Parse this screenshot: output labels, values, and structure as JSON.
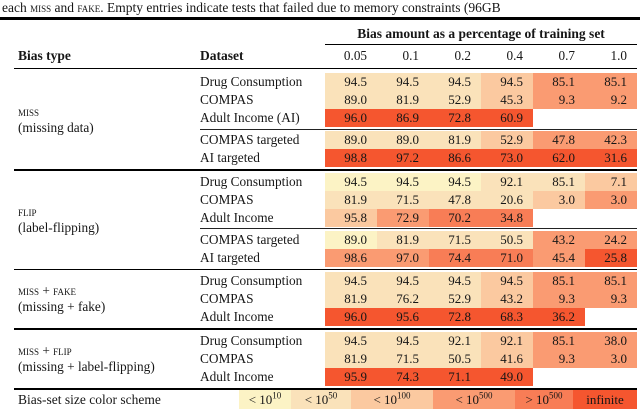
{
  "caption": {
    "parts": [
      {
        "text": "each ",
        "sc": false
      },
      {
        "text": "miss",
        "sc": true
      },
      {
        "text": " and ",
        "sc": false
      },
      {
        "text": "fake",
        "sc": true
      },
      {
        "text": ". Empty entries indicate tests that failed due to memory constraints (96GB",
        "sc": false
      }
    ]
  },
  "palette": {
    "c1": "#FCF3C5",
    "c2": "#FAE2BA",
    "c3": "#FBC9A0",
    "c4": "#FA9B72",
    "c5": "#F87D56",
    "c6": "#F5562F"
  },
  "table": {
    "header": {
      "span_title": "Bias amount as a percentage of training set",
      "col1": "Bias type",
      "col2": "Dataset",
      "amounts": [
        "0.05",
        "0.1",
        "0.2",
        "0.4",
        "0.7",
        "1.0"
      ]
    },
    "sections": [
      {
        "bias_type": "miss",
        "bias_note": "(missing data)",
        "groups": [
          {
            "rows": [
              {
                "dataset": "Drug Consumption",
                "cells": [
                  [
                    "94.5",
                    "c2"
                  ],
                  [
                    "94.5",
                    "c2"
                  ],
                  [
                    "94.5",
                    "c2"
                  ],
                  [
                    "94.5",
                    "c3"
                  ],
                  [
                    "85.1",
                    "c4"
                  ],
                  [
                    "85.1",
                    "c4"
                  ]
                ]
              },
              {
                "dataset": "COMPAS",
                "cells": [
                  [
                    "89.0",
                    "c2"
                  ],
                  [
                    "81.9",
                    "c2"
                  ],
                  [
                    "52.9",
                    "c2"
                  ],
                  [
                    "45.3",
                    "c3"
                  ],
                  [
                    "9.3",
                    "c4"
                  ],
                  [
                    "9.2",
                    "c4"
                  ]
                ]
              },
              {
                "dataset": "Adult Income (AI)",
                "cells": [
                  [
                    "96.0",
                    "c6"
                  ],
                  [
                    "86.9",
                    "c6"
                  ],
                  [
                    "72.8",
                    "c6"
                  ],
                  [
                    "60.9",
                    "c6"
                  ],
                  null,
                  null
                ]
              }
            ]
          },
          {
            "rows": [
              {
                "dataset": "COMPAS targeted",
                "cells": [
                  [
                    "89.0",
                    "c2"
                  ],
                  [
                    "89.0",
                    "c2"
                  ],
                  [
                    "81.9",
                    "c2"
                  ],
                  [
                    "52.9",
                    "c3"
                  ],
                  [
                    "47.8",
                    "c4"
                  ],
                  [
                    "42.3",
                    "c4"
                  ]
                ]
              },
              {
                "dataset": "AI targeted",
                "cells": [
                  [
                    "98.8",
                    "c6"
                  ],
                  [
                    "97.2",
                    "c6"
                  ],
                  [
                    "86.6",
                    "c6"
                  ],
                  [
                    "73.0",
                    "c6"
                  ],
                  [
                    "62.0",
                    "c6"
                  ],
                  [
                    "31.6",
                    "c6"
                  ]
                ]
              }
            ]
          }
        ]
      },
      {
        "bias_type": "flip",
        "bias_note": "(label-flipping)",
        "groups": [
          {
            "rows": [
              {
                "dataset": "Drug Consumption",
                "cells": [
                  [
                    "94.5",
                    "c1"
                  ],
                  [
                    "94.5",
                    "c1"
                  ],
                  [
                    "94.5",
                    "c1"
                  ],
                  [
                    "92.1",
                    "c2"
                  ],
                  [
                    "85.1",
                    "c2"
                  ],
                  [
                    "7.1",
                    "c3"
                  ]
                ]
              },
              {
                "dataset": "COMPAS",
                "cells": [
                  [
                    "81.9",
                    "c2"
                  ],
                  [
                    "71.5",
                    "c2"
                  ],
                  [
                    "47.8",
                    "c2"
                  ],
                  [
                    "20.6",
                    "c2"
                  ],
                  [
                    "3.0",
                    "c3"
                  ],
                  [
                    "3.0",
                    "c4"
                  ]
                ]
              },
              {
                "dataset": "Adult Income",
                "cells": [
                  [
                    "95.8",
                    "c3"
                  ],
                  [
                    "72.9",
                    "c4"
                  ],
                  [
                    "70.2",
                    "c5"
                  ],
                  [
                    "34.8",
                    "c5"
                  ],
                  null,
                  null
                ]
              }
            ]
          },
          {
            "rows": [
              {
                "dataset": "COMPAS targeted",
                "cells": [
                  [
                    "89.0",
                    "c1"
                  ],
                  [
                    "81.9",
                    "c2"
                  ],
                  [
                    "71.5",
                    "c2"
                  ],
                  [
                    "50.5",
                    "c2"
                  ],
                  [
                    "43.2",
                    "c4"
                  ],
                  [
                    "24.2",
                    "c4"
                  ]
                ]
              },
              {
                "dataset": "AI targeted",
                "cells": [
                  [
                    "98.6",
                    "c4"
                  ],
                  [
                    "97.0",
                    "c4"
                  ],
                  [
                    "74.4",
                    "c5"
                  ],
                  [
                    "71.0",
                    "c5"
                  ],
                  [
                    "45.4",
                    "c4"
                  ],
                  [
                    "25.8",
                    "c6"
                  ]
                ]
              }
            ]
          }
        ]
      },
      {
        "bias_type": "miss + fake",
        "bias_note": "(missing + fake)",
        "groups": [
          {
            "rows": [
              {
                "dataset": "Drug Consumption",
                "cells": [
                  [
                    "94.5",
                    "c2"
                  ],
                  [
                    "94.5",
                    "c2"
                  ],
                  [
                    "94.5",
                    "c2"
                  ],
                  [
                    "94.5",
                    "c3"
                  ],
                  [
                    "85.1",
                    "c4"
                  ],
                  [
                    "85.1",
                    "c4"
                  ]
                ]
              },
              {
                "dataset": "COMPAS",
                "cells": [
                  [
                    "81.9",
                    "c2"
                  ],
                  [
                    "76.2",
                    "c2"
                  ],
                  [
                    "52.9",
                    "c2"
                  ],
                  [
                    "43.2",
                    "c3"
                  ],
                  [
                    "9.3",
                    "c4"
                  ],
                  [
                    "9.3",
                    "c4"
                  ]
                ]
              },
              {
                "dataset": "Adult Income",
                "cells": [
                  [
                    "96.0",
                    "c6"
                  ],
                  [
                    "95.6",
                    "c6"
                  ],
                  [
                    "72.8",
                    "c6"
                  ],
                  [
                    "68.3",
                    "c6"
                  ],
                  [
                    "36.2",
                    "c6"
                  ],
                  null
                ]
              }
            ]
          }
        ]
      },
      {
        "bias_type": "miss + flip",
        "bias_note": "(missing + label-flipping)",
        "groups": [
          {
            "rows": [
              {
                "dataset": "Drug Consumption",
                "cells": [
                  [
                    "94.5",
                    "c2"
                  ],
                  [
                    "94.5",
                    "c2"
                  ],
                  [
                    "92.1",
                    "c2"
                  ],
                  [
                    "92.1",
                    "c3"
                  ],
                  [
                    "85.1",
                    "c4"
                  ],
                  [
                    "38.0",
                    "c4"
                  ]
                ]
              },
              {
                "dataset": "COMPAS",
                "cells": [
                  [
                    "81.9",
                    "c2"
                  ],
                  [
                    "71.5",
                    "c2"
                  ],
                  [
                    "50.5",
                    "c2"
                  ],
                  [
                    "41.6",
                    "c3"
                  ],
                  [
                    "9.3",
                    "c4"
                  ],
                  [
                    "3.0",
                    "c4"
                  ]
                ]
              },
              {
                "dataset": "Adult Income",
                "cells": [
                  [
                    "95.9",
                    "c6"
                  ],
                  [
                    "74.3",
                    "c6"
                  ],
                  [
                    "71.1",
                    "c6"
                  ],
                  [
                    "49.0",
                    "c6"
                  ],
                  null,
                  null
                ]
              }
            ]
          }
        ]
      }
    ],
    "legend": {
      "label": "Bias-set size color scheme",
      "items": [
        {
          "base": "< 10",
          "sup": "10",
          "color": "c1"
        },
        {
          "base": "< 10",
          "sup": "50",
          "color": "c2"
        },
        {
          "base": "< 10",
          "sup": "100",
          "color": "c3"
        },
        {
          "base": "< 10",
          "sup": "500",
          "color": "c4"
        },
        {
          "base": "> 10",
          "sup": "500",
          "color": "c5"
        },
        {
          "base": "infinite",
          "sup": "",
          "color": "c6"
        }
      ]
    }
  }
}
